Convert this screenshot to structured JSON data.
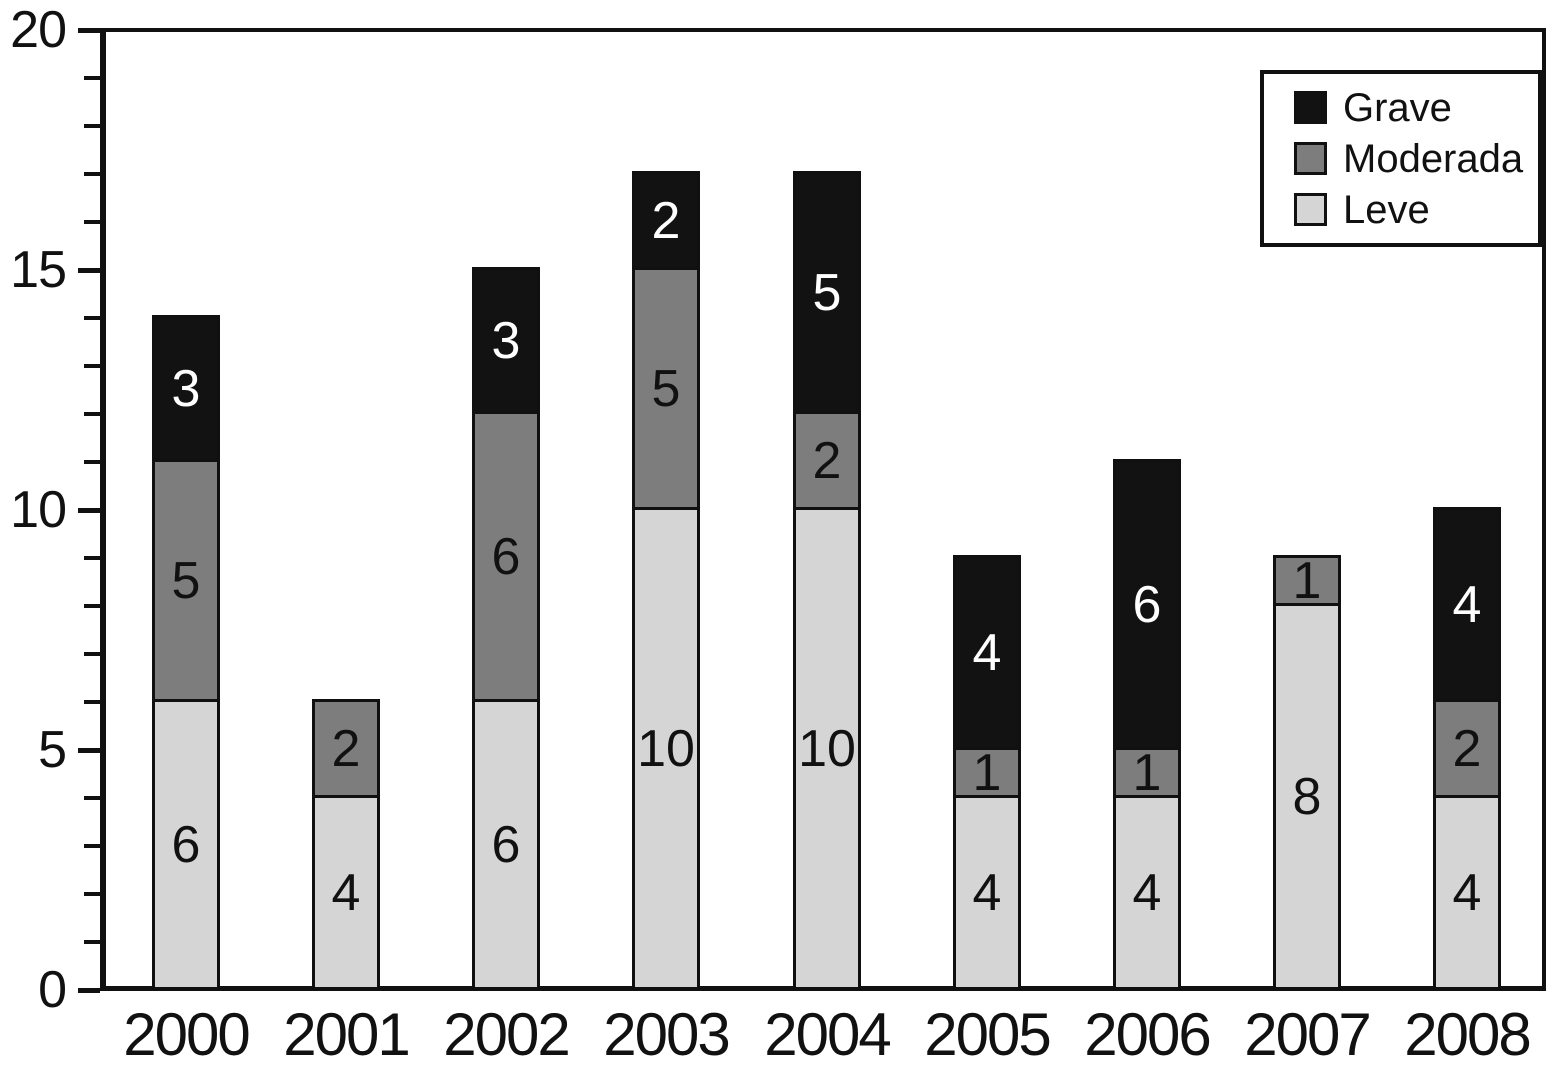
{
  "chart_data": {
    "type": "bar",
    "stacked": true,
    "title": "",
    "xlabel": "",
    "ylabel": "",
    "categories": [
      "2000",
      "2001",
      "2002",
      "2003",
      "2004",
      "2005",
      "2006",
      "2007",
      "2008"
    ],
    "series": [
      {
        "name": "Leve",
        "color": "#d5d5d5",
        "label_color": "#111111",
        "values": [
          6,
          4,
          6,
          10,
          10,
          4,
          4,
          8,
          4
        ]
      },
      {
        "name": "Moderada",
        "color": "#7d7d7d",
        "label_color": "#111111",
        "values": [
          5,
          2,
          6,
          5,
          2,
          1,
          1,
          1,
          2
        ]
      },
      {
        "name": "Grave",
        "color": "#121212",
        "label_color": "#ffffff",
        "values": [
          3,
          0,
          3,
          2,
          5,
          4,
          6,
          0,
          4
        ]
      }
    ],
    "totals": [
      14,
      6,
      15,
      17,
      17,
      9,
      11,
      9,
      10
    ],
    "segment_labels_shown": true,
    "ylim": [
      0,
      20
    ],
    "yticks": [
      0,
      5,
      10,
      15,
      20
    ],
    "minor_tick_step": 1,
    "grid": false,
    "legend": {
      "position": "top-right",
      "order": [
        "Grave",
        "Moderada",
        "Leve"
      ]
    },
    "colors": {
      "axis": "#111111",
      "background": "#ffffff",
      "bar_border": "#101010"
    }
  }
}
